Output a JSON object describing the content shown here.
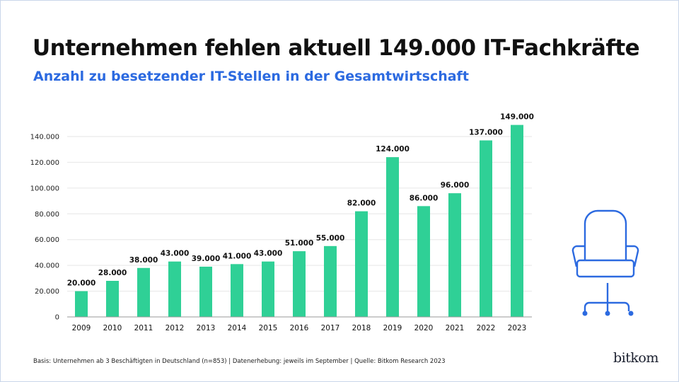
{
  "title": "Unternehmen fehlen aktuell 149.000 IT-Fachkräfte",
  "subtitle": "Anzahl zu besetzender IT-Stellen in der Gesamtwirtschaft",
  "footnote": "Basis: Unternehmen ab 3 Beschäftigten in Deutschland (n=853) | Datenerhebung: jeweils im September | Quelle: Bitkom Research 2023",
  "logo": "bitkom",
  "icon": "office-chair-icon",
  "colors": {
    "bar": "#2fd096",
    "accent": "#2c6ae0",
    "grid": "#e6e6e6"
  },
  "chart_data": {
    "type": "bar",
    "categories": [
      "2009",
      "2010",
      "2011",
      "2012",
      "2013",
      "2014",
      "2015",
      "2016",
      "2017",
      "2018",
      "2019",
      "2020",
      "2021",
      "2022",
      "2023"
    ],
    "values": [
      20000,
      28000,
      38000,
      43000,
      39000,
      41000,
      43000,
      51000,
      55000,
      82000,
      124000,
      86000,
      96000,
      137000,
      149000
    ],
    "data_labels": [
      "20.000",
      "28.000",
      "38.000",
      "43.000",
      "39.000",
      "41.000",
      "43.000",
      "51.000",
      "55.000",
      "82.000",
      "124.000",
      "86.000",
      "96.000",
      "137.000",
      "149.000"
    ],
    "yticks": [
      0,
      20000,
      40000,
      60000,
      80000,
      100000,
      120000,
      140000
    ],
    "ytick_labels": [
      "0",
      "20.000",
      "40.000",
      "60.000",
      "80.000",
      "100.000",
      "120.000",
      "140.000"
    ],
    "ylim": [
      0,
      140000
    ],
    "grid": true,
    "xlabel": "",
    "ylabel": ""
  }
}
